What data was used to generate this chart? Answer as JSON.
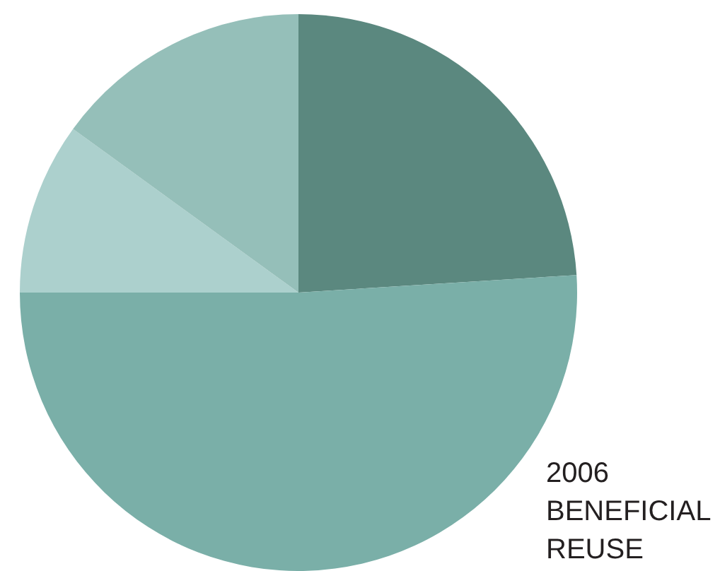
{
  "chart_data": {
    "type": "pie",
    "title": "2006 BENEFICIAL REUSE",
    "categories": [
      null,
      null,
      null,
      null
    ],
    "values": [
      24,
      51,
      10,
      15
    ],
    "colors": [
      "#5b887f",
      "#7aafa8",
      "#acd0cd",
      "#95bfb9"
    ],
    "legend": false
  }
}
